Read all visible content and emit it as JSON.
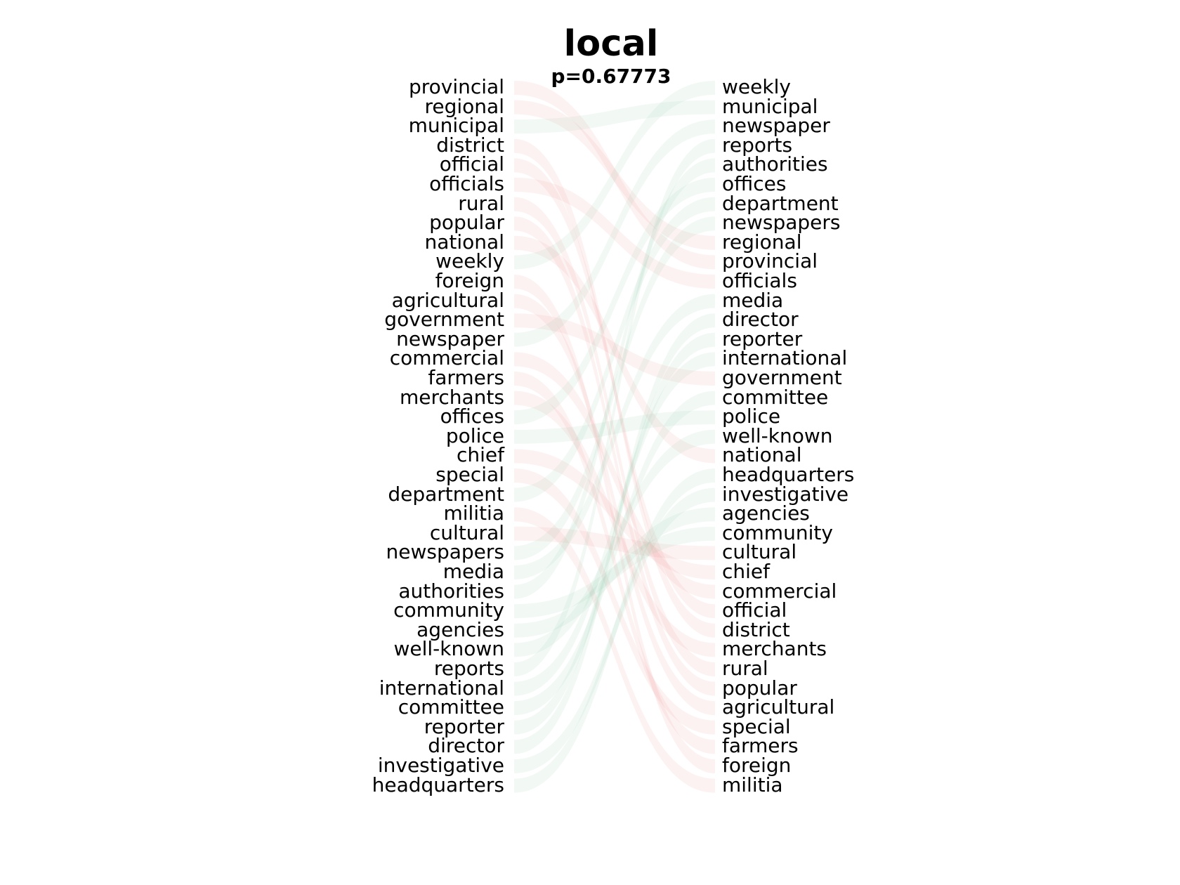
{
  "title": "local",
  "subtitle": "p=0.67773",
  "colors": {
    "left_ribbon": "#f08080",
    "right_ribbon": "#80c8a0",
    "text": "#000000"
  },
  "left_words": [
    "provincial",
    "regional",
    "municipal",
    "district",
    "official",
    "officials",
    "rural",
    "popular",
    "national",
    "weekly",
    "foreign",
    "agricultural",
    "government",
    "newspaper",
    "commercial",
    "farmers",
    "merchants",
    "offices",
    "police",
    "chief",
    "special",
    "department",
    "militia",
    "cultural",
    "newspapers",
    "media",
    "authorities",
    "community",
    "agencies",
    "well-known",
    "reports",
    "international",
    "committee",
    "reporter",
    "director",
    "investigative",
    "headquarters"
  ],
  "right_words": [
    "weekly",
    "municipal",
    "newspaper",
    "reports",
    "authorities",
    "offices",
    "department",
    "newspapers",
    "regional",
    "provincial",
    "officials",
    "media",
    "director",
    "reporter",
    "international",
    "government",
    "committee",
    "police",
    "well-known",
    "national",
    "headquarters",
    "investigative",
    "agencies",
    "community",
    "cultural",
    "chief",
    "commercial",
    "official",
    "district",
    "merchants",
    "rural",
    "popular",
    "agricultural",
    "special",
    "farmers",
    "foreign",
    "militia"
  ]
}
